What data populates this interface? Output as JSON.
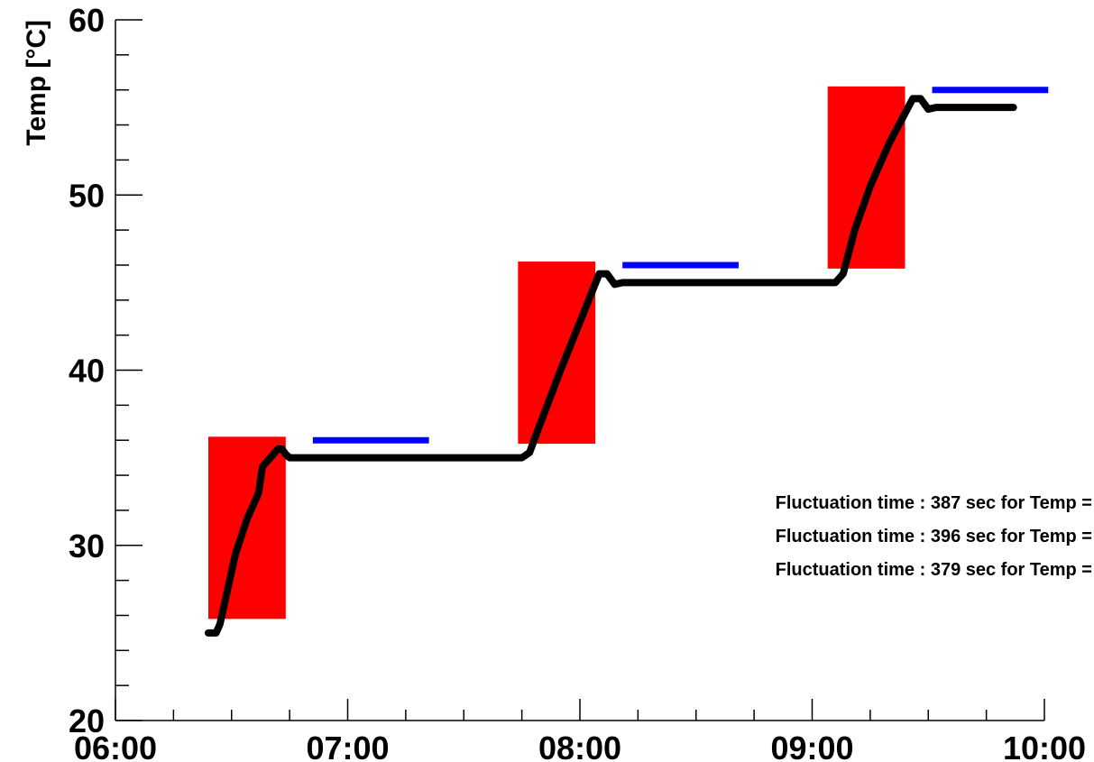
{
  "chart_data": {
    "type": "line",
    "title": "",
    "xlabel": "",
    "ylabel": "Temp [°C]",
    "x_ticks": [
      "06:00",
      "07:00",
      "08:00",
      "09:00",
      "10:00"
    ],
    "xlim": [
      "06:00",
      "10:00"
    ],
    "y_ticks": [
      20,
      30,
      40,
      50,
      60
    ],
    "ylim": [
      20,
      60
    ],
    "grid": false,
    "legend": "none",
    "series": [
      {
        "color": "#000000",
        "points": [
          [
            "06:24",
            25.0
          ],
          [
            "06:26",
            25.0
          ],
          [
            "06:27",
            25.5
          ],
          [
            "06:29",
            27.5
          ],
          [
            "06:31",
            29.5
          ],
          [
            "06:34",
            31.5
          ],
          [
            "06:37",
            33.0
          ],
          [
            "06:38",
            34.5
          ],
          [
            "06:40",
            35.0
          ],
          [
            "06:42",
            35.5
          ],
          [
            "06:43",
            35.5
          ],
          [
            "06:44",
            35.2
          ],
          [
            "06:45",
            35.0
          ],
          [
            "06:46",
            35.0
          ],
          [
            "07:00",
            35.0
          ],
          [
            "07:30",
            35.0
          ],
          [
            "07:45",
            35.0
          ],
          [
            "07:47",
            35.3
          ],
          [
            "07:49",
            36.5
          ],
          [
            "07:55",
            40.0
          ],
          [
            "08:01",
            43.3
          ],
          [
            "08:05",
            45.5
          ],
          [
            "08:07",
            45.5
          ],
          [
            "08:09",
            44.9
          ],
          [
            "08:11",
            45.0
          ],
          [
            "08:30",
            45.0
          ],
          [
            "09:00",
            45.0
          ],
          [
            "09:06",
            45.0
          ],
          [
            "09:08",
            45.5
          ],
          [
            "09:11",
            48.0
          ],
          [
            "09:15",
            50.5
          ],
          [
            "09:20",
            53.0
          ],
          [
            "09:26",
            55.5
          ],
          [
            "09:28",
            55.5
          ],
          [
            "09:30",
            54.9
          ],
          [
            "09:32",
            55.0
          ],
          [
            "09:45",
            55.0
          ],
          [
            "09:52",
            55.0
          ]
        ]
      }
    ],
    "fluctuation_boxes": [
      {
        "color": "#ff0000",
        "x": [
          "06:24",
          "06:44"
        ],
        "y": [
          25.8,
          36.2
        ]
      },
      {
        "color": "#ff0000",
        "x": [
          "07:44",
          "08:04"
        ],
        "y": [
          35.8,
          46.2
        ]
      },
      {
        "color": "#ff0000",
        "x": [
          "09:04",
          "09:24"
        ],
        "y": [
          45.8,
          56.2
        ]
      }
    ],
    "setpoint_lines": [
      {
        "color": "#0000ff",
        "x": [
          "06:51",
          "07:21"
        ],
        "y": 36
      },
      {
        "color": "#0000ff",
        "x": [
          "08:11",
          "08:41"
        ],
        "y": 46
      },
      {
        "color": "#0000ff",
        "x": [
          "09:31",
          "10:01"
        ],
        "y": 56
      }
    ],
    "annotations": [
      "Fluctuation time : 387 sec for Temp =",
      "Fluctuation time : 396 sec for Temp =",
      "Fluctuation time : 379 sec for Temp ="
    ]
  }
}
